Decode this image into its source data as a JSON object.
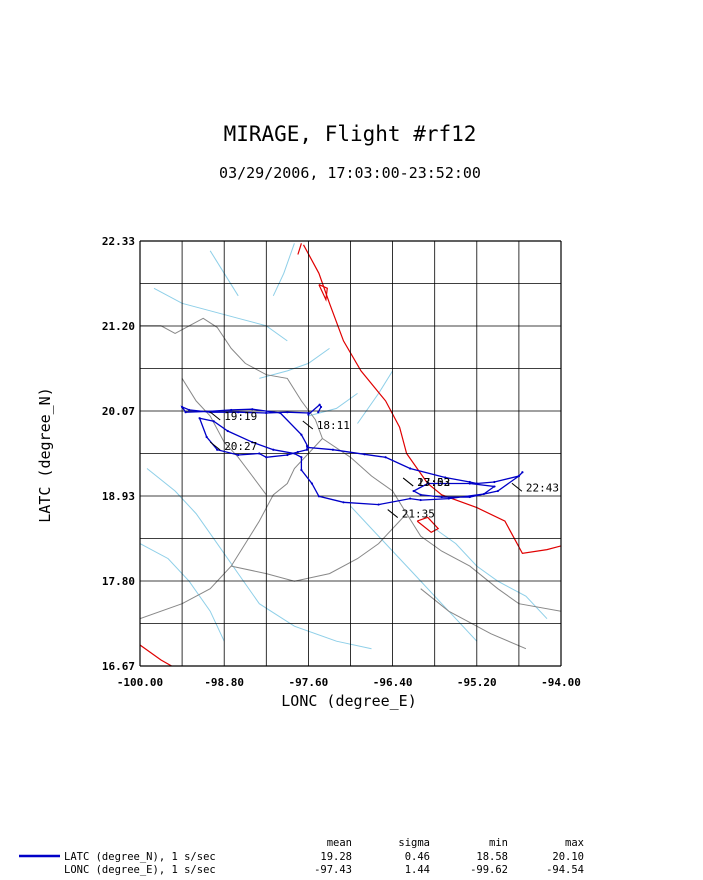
{
  "chart_data": {
    "type": "line",
    "title": "MIRAGE, Flight #rf12",
    "subtitle": "03/29/2006, 17:03:00-23:52:00",
    "xlabel": "LONC (degree_E)",
    "ylabel": "LATC (degree_N)",
    "xlim": [
      -100.0,
      -94.0
    ],
    "ylim": [
      16.67,
      22.33
    ],
    "x_ticks": [
      "-100.00",
      "-98.80",
      "-97.60",
      "-96.40",
      "-95.20",
      "-94.00"
    ],
    "y_ticks": [
      "16.67",
      "17.80",
      "18.93",
      "20.07",
      "21.20",
      "22.33"
    ],
    "grid": true,
    "colors": {
      "track": "#0000c8",
      "coast": "#e00000",
      "border": "#888888",
      "river": "#8ecfe8"
    },
    "series": [
      {
        "name": "LATC (degree_N), 1 s/sec",
        "x": [
          -97.46,
          -97.42,
          -97.44,
          -97.6,
          -97.6,
          -97.9,
          -98.2,
          -98.6,
          -99.0,
          -99.3,
          -99.4,
          -99.35,
          -99.05,
          -98.7,
          -98.4,
          -98.0,
          -97.7,
          -97.6,
          -97.25,
          -96.8,
          -96.5,
          -96.15,
          -95.65,
          -95.3,
          -95.2,
          -94.95,
          -94.6,
          -94.55,
          -94.6,
          -94.9,
          -95.3,
          -95.7,
          -96.0,
          -96.1,
          -95.9,
          -95.3,
          -94.95,
          -95.1,
          -95.6,
          -96.0,
          -96.15,
          -96.6,
          -97.1,
          -97.45,
          -97.55,
          -97.7,
          -97.7,
          -97.8,
          -98.1,
          -98.4,
          -98.75,
          -98.95,
          -99.15,
          -99.05,
          -98.9,
          -98.6,
          -98.3,
          -98.2,
          -97.9,
          -97.75,
          -97.62,
          -97.62
        ],
        "y": [
          20.05,
          20.12,
          20.15,
          20.02,
          20.04,
          20.05,
          20.04,
          20.05,
          20.05,
          20.08,
          20.12,
          20.05,
          20.06,
          20.08,
          20.09,
          20.04,
          19.75,
          19.58,
          19.55,
          19.49,
          19.45,
          19.3,
          19.18,
          19.12,
          19.1,
          19.12,
          19.2,
          19.25,
          19.2,
          19.0,
          18.92,
          18.92,
          18.95,
          19.0,
          19.1,
          19.1,
          19.06,
          18.96,
          18.9,
          18.88,
          18.9,
          18.82,
          18.85,
          18.93,
          19.1,
          19.28,
          19.45,
          19.5,
          19.55,
          19.65,
          19.8,
          19.93,
          19.97,
          19.72,
          19.55,
          19.48,
          19.5,
          19.45,
          19.48,
          19.52,
          19.55,
          19.6
        ]
      },
      {
        "name": "LONC (degree_E), 1 s/sec",
        "x": [],
        "y": []
      }
    ],
    "time_labels": [
      {
        "text": "19:19",
        "x": -98.8,
        "y": 20.0
      },
      {
        "text": "20:27",
        "x": -98.8,
        "y": 19.6
      },
      {
        "text": "18:11",
        "x": -97.48,
        "y": 19.88
      },
      {
        "text": "17:03",
        "x": -96.05,
        "y": 19.12
      },
      {
        "text": "23:52",
        "x": -96.05,
        "y": 19.12
      },
      {
        "text": "22:43",
        "x": -94.5,
        "y": 19.05
      },
      {
        "text": "21:35",
        "x": -96.27,
        "y": 18.7
      }
    ],
    "legend": {
      "placement": "bottom",
      "headers": [
        "mean",
        "sigma",
        "min",
        "max"
      ],
      "rows": [
        {
          "label": "LATC (degree_N), 1 s/sec",
          "mean": "19.28",
          "sigma": "0.46",
          "min": "18.58",
          "max": "20.10"
        },
        {
          "label": "LONC (degree_E), 1 s/sec",
          "mean": "-97.43",
          "sigma": "1.44",
          "min": "-99.62",
          "max": "-94.54"
        }
      ]
    },
    "map_outlines": {
      "coast": [
        [
          [
            -97.67,
            22.28
          ],
          [
            -97.45,
            21.9
          ],
          [
            -97.3,
            21.5
          ],
          [
            -97.1,
            21.0
          ],
          [
            -96.85,
            20.6
          ],
          [
            -96.5,
            20.2
          ],
          [
            -96.3,
            19.85
          ],
          [
            -96.2,
            19.5
          ],
          [
            -95.9,
            19.1
          ],
          [
            -95.7,
            18.95
          ],
          [
            -95.2,
            18.78
          ],
          [
            -94.8,
            18.6
          ],
          [
            -94.55,
            18.17
          ],
          [
            -94.2,
            18.22
          ],
          [
            -94.0,
            18.27
          ]
        ],
        [
          [
            -100.0,
            16.95
          ],
          [
            -99.7,
            16.75
          ],
          [
            -99.55,
            16.67
          ]
        ],
        [
          [
            -96.05,
            18.6
          ],
          [
            -95.85,
            18.45
          ],
          [
            -95.75,
            18.5
          ],
          [
            -95.9,
            18.65
          ],
          [
            -96.05,
            18.6
          ]
        ],
        [
          [
            -97.7,
            22.3
          ],
          [
            -97.75,
            22.15
          ]
        ],
        [
          [
            -97.45,
            21.75
          ],
          [
            -97.35,
            21.55
          ],
          [
            -97.33,
            21.7
          ],
          [
            -97.45,
            21.75
          ]
        ]
      ],
      "border": [
        [
          [
            -100.0,
            21.2
          ],
          [
            -99.7,
            21.2
          ],
          [
            -99.5,
            21.1
          ],
          [
            -99.1,
            21.3
          ],
          [
            -98.9,
            21.18
          ],
          [
            -98.7,
            20.9
          ],
          [
            -98.5,
            20.7
          ],
          [
            -98.2,
            20.55
          ],
          [
            -97.9,
            20.5
          ],
          [
            -97.7,
            20.2
          ],
          [
            -97.5,
            19.95
          ],
          [
            -97.4,
            19.7
          ],
          [
            -97.6,
            19.5
          ],
          [
            -97.8,
            19.3
          ],
          [
            -97.9,
            19.1
          ],
          [
            -98.1,
            18.95
          ],
          [
            -98.3,
            18.6
          ],
          [
            -98.5,
            18.3
          ],
          [
            -98.7,
            18.0
          ],
          [
            -99.0,
            17.7
          ],
          [
            -99.4,
            17.5
          ],
          [
            -100.0,
            17.3
          ]
        ],
        [
          [
            -99.4,
            20.5
          ],
          [
            -99.2,
            20.2
          ],
          [
            -99.0,
            20.0
          ],
          [
            -98.8,
            19.65
          ],
          [
            -98.6,
            19.45
          ],
          [
            -98.4,
            19.2
          ],
          [
            -98.2,
            18.95
          ]
        ],
        [
          [
            -97.4,
            19.7
          ],
          [
            -97.0,
            19.45
          ],
          [
            -96.7,
            19.2
          ],
          [
            -96.4,
            19.0
          ],
          [
            -96.2,
            18.7
          ],
          [
            -96.0,
            18.4
          ],
          [
            -95.7,
            18.2
          ],
          [
            -95.3,
            18.0
          ],
          [
            -94.9,
            17.7
          ],
          [
            -94.6,
            17.5
          ],
          [
            -94.0,
            17.4
          ]
        ],
        [
          [
            -98.7,
            18.0
          ],
          [
            -98.2,
            17.9
          ],
          [
            -97.8,
            17.8
          ],
          [
            -97.3,
            17.9
          ],
          [
            -96.9,
            18.1
          ],
          [
            -96.6,
            18.3
          ],
          [
            -96.2,
            18.7
          ]
        ],
        [
          [
            -96.0,
            17.7
          ],
          [
            -95.6,
            17.4
          ],
          [
            -95.0,
            17.1
          ],
          [
            -94.5,
            16.9
          ]
        ]
      ],
      "rivers": [
        [
          [
            -99.8,
            21.7
          ],
          [
            -99.4,
            21.5
          ],
          [
            -99.0,
            21.4
          ],
          [
            -98.6,
            21.3
          ],
          [
            -98.2,
            21.2
          ],
          [
            -97.9,
            21.0
          ]
        ],
        [
          [
            -99.0,
            22.2
          ],
          [
            -98.8,
            21.9
          ],
          [
            -98.6,
            21.6
          ]
        ],
        [
          [
            -97.8,
            22.3
          ],
          [
            -97.95,
            21.9
          ],
          [
            -98.1,
            21.6
          ]
        ],
        [
          [
            -97.3,
            20.9
          ],
          [
            -97.6,
            20.7
          ],
          [
            -97.9,
            20.6
          ],
          [
            -98.3,
            20.5
          ]
        ],
        [
          [
            -96.9,
            20.3
          ],
          [
            -97.2,
            20.1
          ],
          [
            -97.6,
            20.0
          ]
        ],
        [
          [
            -99.9,
            19.3
          ],
          [
            -99.5,
            19.0
          ],
          [
            -99.2,
            18.7
          ],
          [
            -98.9,
            18.3
          ],
          [
            -98.6,
            17.9
          ],
          [
            -98.3,
            17.5
          ],
          [
            -97.8,
            17.2
          ],
          [
            -97.2,
            17.0
          ],
          [
            -96.7,
            16.9
          ]
        ],
        [
          [
            -97.0,
            18.8
          ],
          [
            -96.7,
            18.5
          ],
          [
            -96.4,
            18.2
          ],
          [
            -96.1,
            17.9
          ],
          [
            -95.8,
            17.6
          ],
          [
            -95.5,
            17.3
          ],
          [
            -95.2,
            17.0
          ]
        ],
        [
          [
            -95.8,
            18.5
          ],
          [
            -95.5,
            18.3
          ],
          [
            -95.2,
            18.0
          ],
          [
            -94.9,
            17.8
          ],
          [
            -94.5,
            17.6
          ],
          [
            -94.2,
            17.3
          ]
        ],
        [
          [
            -100.0,
            18.3
          ],
          [
            -99.6,
            18.1
          ],
          [
            -99.3,
            17.8
          ],
          [
            -99.0,
            17.4
          ],
          [
            -98.8,
            17.0
          ]
        ],
        [
          [
            -96.4,
            20.6
          ],
          [
            -96.6,
            20.3
          ],
          [
            -96.9,
            19.9
          ]
        ]
      ]
    }
  }
}
